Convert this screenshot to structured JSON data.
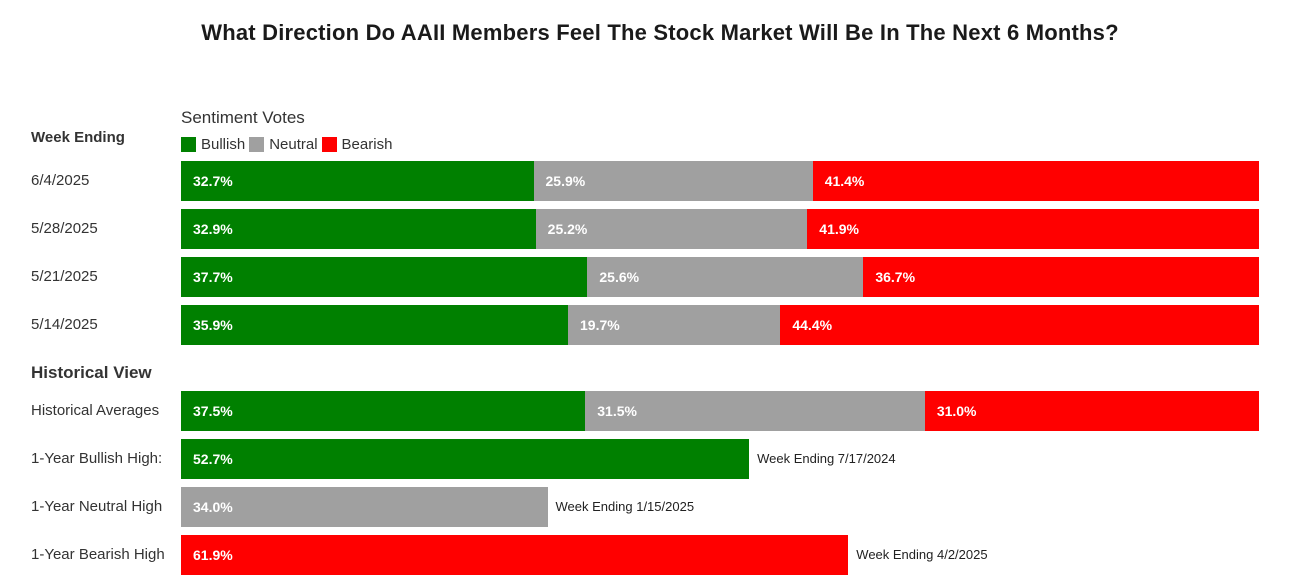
{
  "chart_data": {
    "type": "bar",
    "orientation": "horizontal",
    "stacked": true,
    "title": "What Direction Do AAII Members Feel The Stock Market Will Be In The Next 6 Months?",
    "legend_title": "Sentiment Votes",
    "row_header": "Week Ending",
    "legend_position": "top-left",
    "grid": false,
    "colors": {
      "Bullish": "#008000",
      "Neutral": "#a0a0a0",
      "Bearish": "#ff0000"
    },
    "legend": [
      "Bullish",
      "Neutral",
      "Bearish"
    ],
    "categories": [
      "6/4/2025",
      "5/28/2025",
      "5/21/2025",
      "5/14/2025"
    ],
    "series": [
      {
        "name": "Bullish",
        "values": [
          32.7,
          32.9,
          37.7,
          35.9
        ]
      },
      {
        "name": "Neutral",
        "values": [
          25.9,
          25.2,
          25.6,
          19.7
        ]
      },
      {
        "name": "Bearish",
        "values": [
          41.4,
          41.9,
          36.7,
          44.4
        ]
      }
    ],
    "value_labels": {
      "Bullish": [
        "32.7%",
        "32.9%",
        "37.7%",
        "35.9%"
      ],
      "Neutral": [
        "25.9%",
        "25.2%",
        "25.6%",
        "19.7%"
      ],
      "Bearish": [
        "41.4%",
        "41.9%",
        "36.7%",
        "44.4%"
      ]
    },
    "historical": {
      "heading": "Historical View",
      "averages": {
        "label": "Historical Averages",
        "values": [
          37.5,
          31.5,
          31.0
        ],
        "value_labels": [
          "37.5%",
          "31.5%",
          "31.0%"
        ]
      },
      "highs": [
        {
          "label": "1-Year Bullish High:",
          "series": "Bullish",
          "value": 52.7,
          "value_label": "52.7%",
          "note": "Week Ending 7/17/2024"
        },
        {
          "label": "1-Year Neutral High",
          "series": "Neutral",
          "value": 34.0,
          "value_label": "34.0%",
          "note": "Week Ending 1/15/2025"
        },
        {
          "label": "1-Year Bearish High",
          "series": "Bearish",
          "value": 61.9,
          "value_label": "61.9%",
          "note": "Week Ending 4/2/2025"
        }
      ]
    },
    "xlim": [
      0,
      100
    ]
  }
}
